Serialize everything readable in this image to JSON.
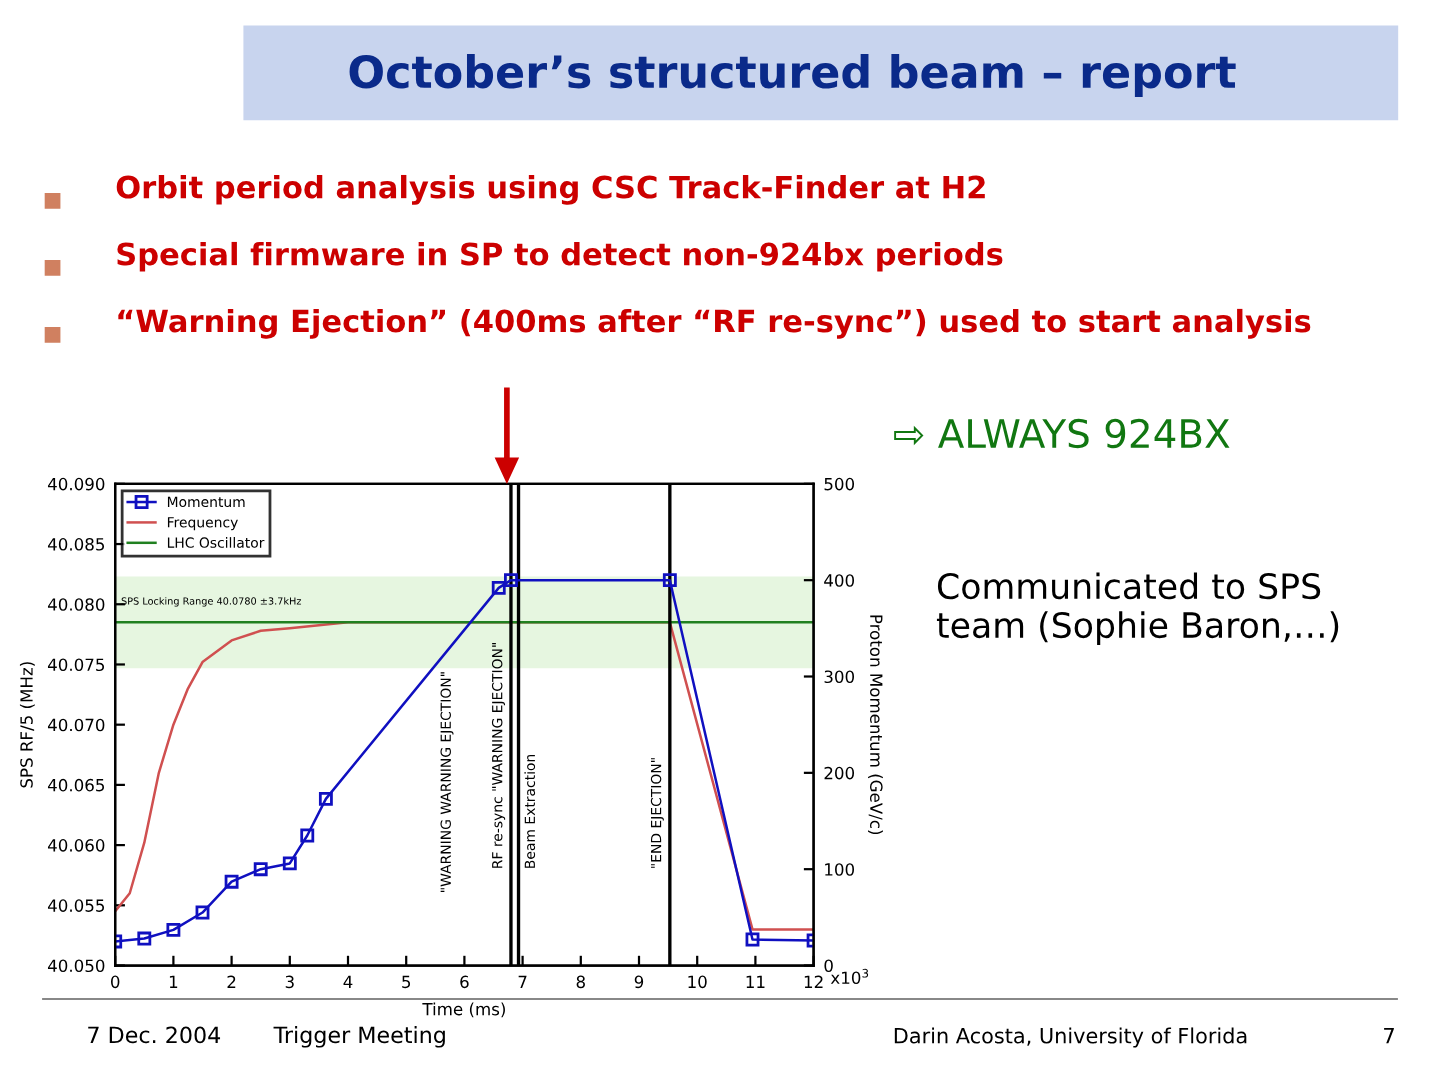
{
  "chart_data": {
    "type": "line",
    "title": "October’s structured beam – report",
    "xlabel": "Time (ms)",
    "ylabel": "SPS RF/5 (MHz)",
    "y2label": "Proton Momentum (GeV/c)",
    "xlim": [
      0,
      12
    ],
    "xticks": [
      0,
      1,
      2,
      3,
      4,
      5,
      6,
      7,
      8,
      9,
      10,
      11,
      12
    ],
    "ylim": [
      40.05,
      40.09
    ],
    "yticks": [
      {
        "value": 40.05,
        "label": "40.050"
      },
      {
        "value": 40.055,
        "label": "40.055"
      },
      {
        "value": 40.06,
        "label": "40.060"
      },
      {
        "value": 40.065,
        "label": "40.065"
      },
      {
        "value": 40.07,
        "label": "40.070"
      },
      {
        "value": 40.075,
        "label": "40.075"
      },
      {
        "value": 40.08,
        "label": "40.080"
      },
      {
        "value": 40.085,
        "label": "40.085"
      },
      {
        "value": 40.09,
        "label": "40.090"
      }
    ],
    "y2lim": [
      0,
      500
    ],
    "y2ticks": [
      0,
      100,
      200,
      300,
      400,
      500
    ],
    "series": [
      {
        "name": "Momentum",
        "color": "#1010c0",
        "axis": "y2",
        "marker": "square",
        "x": [
          0,
          0.5,
          1,
          1.5,
          2,
          2.5,
          3,
          3.3,
          3.62,
          6.59,
          6.8,
          9.53,
          10.95,
          12
        ],
        "values": [
          25,
          28,
          37,
          55,
          87,
          100,
          106,
          135,
          173,
          392,
          400,
          400,
          27,
          26
        ]
      },
      {
        "name": "Frequency",
        "color": "#d05050",
        "x": [
          0,
          0.25,
          0.5,
          0.75,
          1,
          1.25,
          1.5,
          2,
          2.5,
          3,
          4,
          6.8,
          9.53,
          10.95,
          12
        ],
        "values": [
          40.0545,
          40.056,
          40.0602,
          40.066,
          40.07,
          40.073,
          40.0752,
          40.077,
          40.0778,
          40.078,
          40.0785,
          40.0785,
          40.0785,
          40.053,
          40.053
        ]
      },
      {
        "name": "LHC Oscillator",
        "color": "#208020",
        "x": [
          0,
          12
        ],
        "values": [
          40.0785,
          40.0785
        ]
      }
    ],
    "bands": [
      {
        "axis": "y",
        "from": 40.0748,
        "to": 40.0822,
        "label": "SPS Locking Range 40.0780 ±3.7kHz",
        "color": "#e6f6e0"
      }
    ],
    "ref_lines": [
      {
        "axis": "x",
        "value": 6.8,
        "label": "RF re-sync \"WARNING EJECTION\"",
        "color": "#000000"
      },
      {
        "axis": "x",
        "value": 6.93,
        "label": "Beam Extraction",
        "color": "#000000"
      },
      {
        "axis": "x",
        "value": 9.53,
        "label": "\"END EJECTION\"",
        "color": "#000000"
      }
    ],
    "legend": "top left",
    "annotations": [
      "\"WARNING WARNING EJECTION\"",
      "Orbit period analysis using CSC Track-Finder at H2",
      "Special firmware in SP to detect non-924bx periods",
      "“Warning Ejection” (400ms after “RF re-sync”) used to start analysis",
      "⇨ ALWAYS 924BX",
      "Communicated to SPS team (Sophie Baron,…)",
      "7 Dec. 2004",
      "Trigger Meeting",
      "Darin Acosta, University of Florida",
      "7",
      "x10$^{3}$"
    ]
  }
}
